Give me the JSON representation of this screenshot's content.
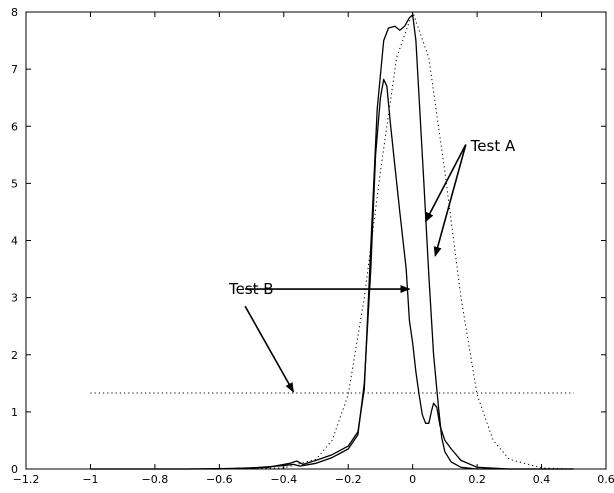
{
  "chart_data": {
    "type": "line",
    "title": "",
    "xlabel": "",
    "ylabel": "",
    "xlim": [
      -1.2,
      0.6
    ],
    "ylim": [
      0,
      8
    ],
    "grid": false,
    "x_ticks": [
      {
        "value": -1.2,
        "label": "−1.2"
      },
      {
        "value": -1.0,
        "label": "−1"
      },
      {
        "value": -0.8,
        "label": "−0.8"
      },
      {
        "value": -0.6,
        "label": "−0.6"
      },
      {
        "value": -0.4,
        "label": "−0.4"
      },
      {
        "value": -0.2,
        "label": "−0.2"
      },
      {
        "value": 0.0,
        "label": "0"
      },
      {
        "value": 0.2,
        "label": "0.2"
      },
      {
        "value": 0.4,
        "label": "0.4"
      },
      {
        "value": 0.6,
        "label": "0.6"
      }
    ],
    "y_ticks": [
      {
        "value": 0,
        "label": "0"
      },
      {
        "value": 1,
        "label": "1"
      },
      {
        "value": 2,
        "label": "2"
      },
      {
        "value": 3,
        "label": "3"
      },
      {
        "value": 4,
        "label": "4"
      },
      {
        "value": 5,
        "label": "5"
      },
      {
        "value": 6,
        "label": "6"
      },
      {
        "value": 7,
        "label": "7"
      },
      {
        "value": 8,
        "label": "8"
      }
    ],
    "series": [
      {
        "style": "solid",
        "color": "#000000",
        "x": [
          -1.0,
          -0.7,
          -0.55,
          -0.45,
          -0.38,
          -0.36,
          -0.34,
          -0.3,
          -0.25,
          -0.2,
          -0.17,
          -0.15,
          -0.13,
          -0.11,
          -0.09,
          -0.075,
          -0.055,
          -0.04,
          -0.025,
          -0.01,
          0.0,
          0.01,
          0.02,
          0.035,
          0.05,
          0.065,
          0.08,
          0.09,
          0.1,
          0.12,
          0.15,
          0.2,
          0.3,
          0.5
        ],
        "values": [
          0.0,
          0.0,
          0.01,
          0.03,
          0.1,
          0.14,
          0.08,
          0.15,
          0.25,
          0.4,
          0.65,
          1.4,
          3.9,
          6.3,
          7.5,
          7.72,
          7.75,
          7.68,
          7.75,
          7.9,
          7.95,
          7.5,
          6.5,
          5.0,
          3.4,
          2.0,
          1.1,
          0.55,
          0.3,
          0.12,
          0.03,
          0.0,
          0.0,
          0.0
        ]
      },
      {
        "style": "solid",
        "color": "#000000",
        "x": [
          -1.0,
          -0.6,
          -0.5,
          -0.4,
          -0.37,
          -0.35,
          -0.3,
          -0.25,
          -0.2,
          -0.17,
          -0.15,
          -0.13,
          -0.115,
          -0.1,
          -0.09,
          -0.08,
          -0.07,
          -0.055,
          -0.04,
          -0.02,
          -0.01,
          0.0,
          0.01,
          0.02,
          0.03,
          0.04,
          0.05,
          0.06,
          0.065,
          0.075,
          0.085,
          0.1,
          0.12,
          0.15,
          0.2,
          0.3,
          0.5
        ],
        "values": [
          0.0,
          0.0,
          0.02,
          0.06,
          0.08,
          0.05,
          0.1,
          0.2,
          0.35,
          0.6,
          1.5,
          3.5,
          5.5,
          6.5,
          6.82,
          6.7,
          6.1,
          5.3,
          4.5,
          3.5,
          2.6,
          2.2,
          1.7,
          1.3,
          0.95,
          0.8,
          0.8,
          1.05,
          1.15,
          1.08,
          0.75,
          0.5,
          0.35,
          0.15,
          0.03,
          0.0,
          0.0
        ]
      },
      {
        "style": "dotted",
        "color": "#000000",
        "x": [
          -0.6,
          -0.4,
          -0.3,
          -0.25,
          -0.2,
          -0.15,
          -0.1,
          -0.05,
          0.0,
          0.05,
          0.1,
          0.15,
          0.2,
          0.25,
          0.3,
          0.4,
          0.5
        ],
        "values": [
          0.0,
          0.02,
          0.17,
          0.5,
          1.3,
          3.0,
          5.2,
          7.2,
          8.0,
          7.2,
          5.2,
          3.0,
          1.3,
          0.5,
          0.17,
          0.02,
          0.0
        ]
      },
      {
        "style": "dotted",
        "color": "#000000",
        "x": [
          -1.0,
          0.5
        ],
        "values": [
          1.33,
          1.33
        ]
      }
    ],
    "annotations": [
      {
        "text": "Test A",
        "text_x": 0.18,
        "text_y": 5.65,
        "arrows": [
          {
            "from": [
              0.165,
              5.68
            ],
            "to": [
              0.04,
              4.33
            ]
          },
          {
            "from": [
              0.165,
              5.68
            ],
            "to": [
              0.07,
              3.73
            ]
          }
        ]
      },
      {
        "text": "Test B",
        "text_x": -0.57,
        "text_y": 3.15,
        "arrows": [
          {
            "from": [
              -0.52,
              3.15
            ],
            "to": [
              -0.01,
              3.15
            ]
          },
          {
            "from": [
              -0.52,
              2.85
            ],
            "to": [
              -0.37,
              1.35
            ]
          }
        ]
      }
    ]
  }
}
